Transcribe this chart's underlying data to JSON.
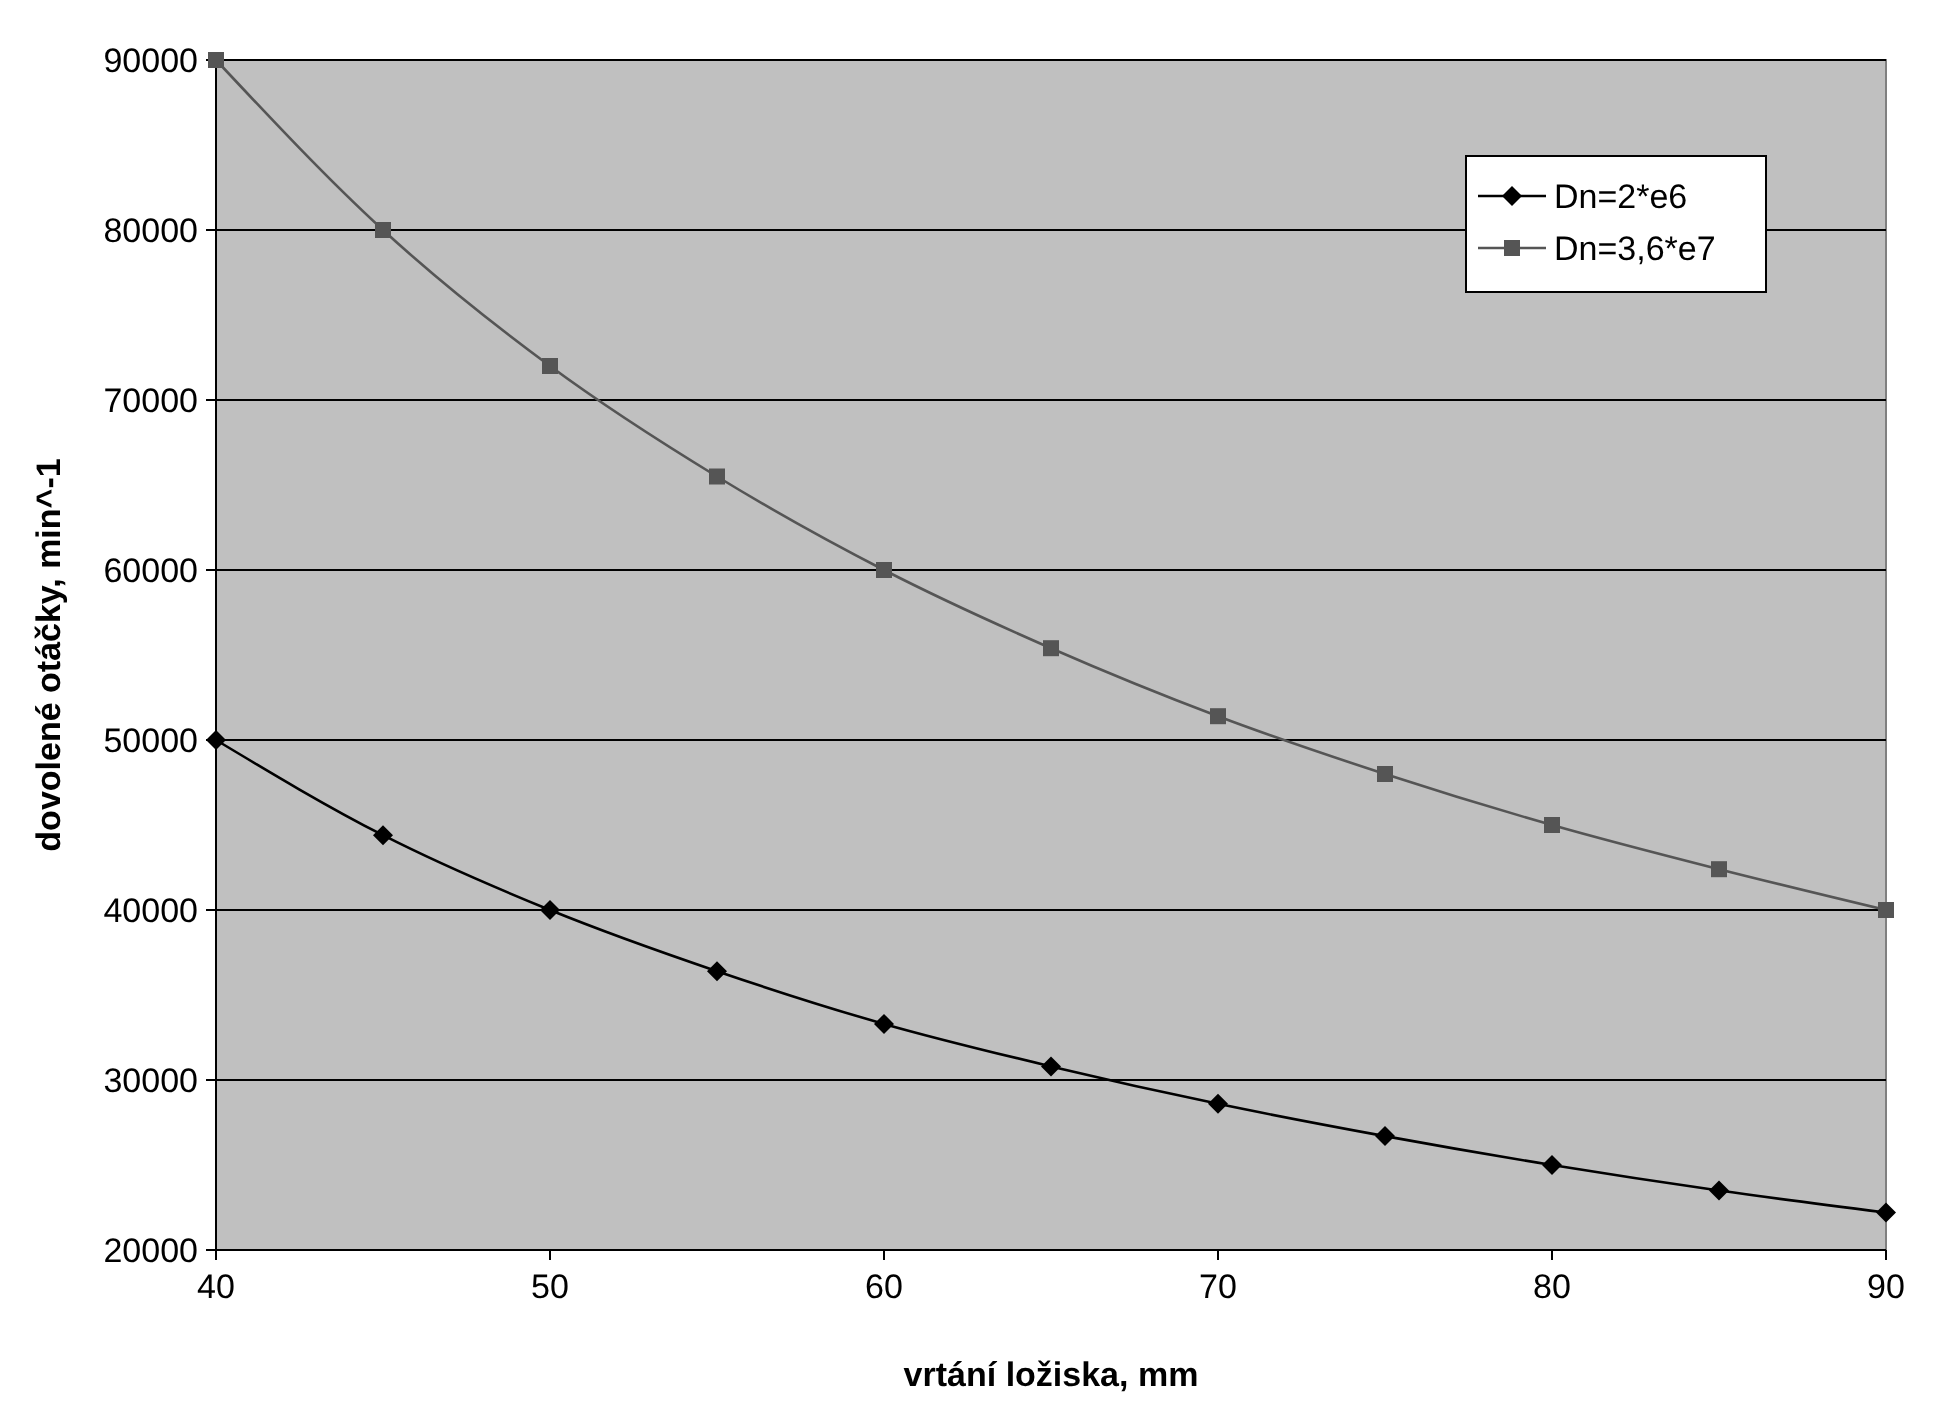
{
  "chart_data": {
    "type": "line",
    "xlabel": "vrtání ložiska, mm",
    "ylabel": "dovolené otáčky, min^-1",
    "x": [
      40,
      45,
      50,
      55,
      60,
      65,
      70,
      75,
      80,
      85,
      90
    ],
    "series": [
      {
        "name": "Dn=2*e6",
        "color": "#000000",
        "marker": "diamond",
        "values": [
          50000,
          44400,
          40000,
          36400,
          33300,
          30800,
          28600,
          26700,
          25000,
          23500,
          22200
        ]
      },
      {
        "name": "Dn=3,6*e7",
        "color": "#555555",
        "marker": "square",
        "values": [
          90000,
          80000,
          72000,
          65500,
          60000,
          55400,
          51400,
          48000,
          45000,
          42400,
          40000
        ]
      }
    ],
    "xlim": [
      40,
      90
    ],
    "xticks": [
      40,
      50,
      60,
      70,
      80,
      90
    ],
    "ylim": [
      20000,
      90000
    ],
    "yticks": [
      20000,
      30000,
      40000,
      50000,
      60000,
      70000,
      80000,
      90000
    ],
    "grid": "y",
    "legend": "top right",
    "line_style": "solid"
  }
}
